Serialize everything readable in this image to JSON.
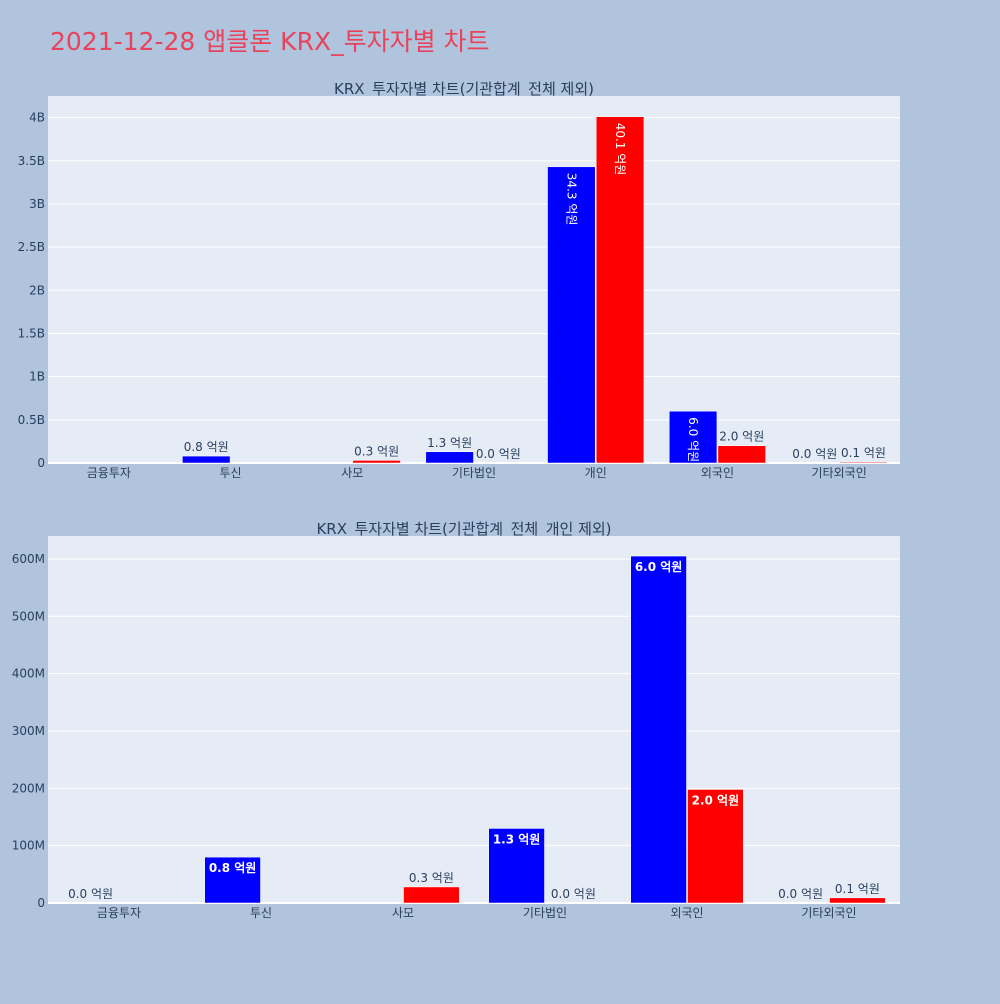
{
  "page_title": "2021-12-28 앱클론 KRX_투자자별 차트",
  "colors": {
    "buy": "#0000ff",
    "sell": "#ff0000",
    "plot_bg": "#e5ecf6",
    "paper_bg": "#b0c4de",
    "title": "#e8435a"
  },
  "chart_data": [
    {
      "type": "bar",
      "title": "KRX_투자자별 차트(기관합계_전체 제외)",
      "categories": [
        "금융투자",
        "투신",
        "사모",
        "기타법인",
        "개인",
        "외국인",
        "기타외국인"
      ],
      "ylim": [
        0,
        4250000000
      ],
      "yticks": [
        0,
        500000000,
        1000000000,
        1500000000,
        2000000000,
        2500000000,
        3000000000,
        3500000000,
        4000000000
      ],
      "ytick_labels": [
        "0",
        "0.5B",
        "1B",
        "1.5B",
        "2B",
        "2.5B",
        "3B",
        "3.5B",
        "4B"
      ],
      "grid": true,
      "series": [
        {
          "values": [
            0,
            80000000,
            0,
            130000000,
            3430000000,
            600000000,
            0
          ],
          "labels": [
            "",
            "0.8 억원",
            "",
            "1.3 억원",
            "34.3 억원",
            "6.0 억원",
            "0.0 억원"
          ],
          "label_pos": [
            "",
            "outside",
            "",
            "outside",
            "inside",
            "inside",
            "outside"
          ]
        },
        {
          "values": [
            0,
            0,
            30000000,
            0,
            4010000000,
            200000000,
            10000000
          ],
          "labels": [
            "",
            "",
            "0.3 억원",
            "0.0 억원",
            "40.1 억원",
            "2.0 억원",
            "0.1 억원"
          ],
          "label_pos": [
            "",
            "",
            "outside",
            "outside",
            "inside",
            "outside",
            "outside"
          ]
        }
      ]
    },
    {
      "type": "bar",
      "title": "KRX_투자자별 차트(기관합계_전체_개인 제외)",
      "categories": [
        "금융투자",
        "투신",
        "사모",
        "기타법인",
        "외국인",
        "기타외국인"
      ],
      "ylim": [
        0,
        640000000
      ],
      "yticks": [
        0,
        100000000,
        200000000,
        300000000,
        400000000,
        500000000,
        600000000
      ],
      "ytick_labels": [
        "0",
        "100M",
        "200M",
        "300M",
        "400M",
        "500M",
        "600M"
      ],
      "grid": true,
      "series": [
        {
          "values": [
            0,
            80000000,
            0,
            130000000,
            605000000,
            0
          ],
          "labels": [
            "0.0 억원",
            "0.8 억원",
            "",
            "1.3 억원",
            "6.0 억원",
            "0.0 억원"
          ],
          "label_pos": [
            "outside",
            "inside",
            "",
            "inside",
            "inside",
            "outside"
          ]
        },
        {
          "values": [
            0,
            0,
            28000000,
            0,
            198000000,
            9000000
          ],
          "labels": [
            "",
            "",
            "0.3 억원",
            "0.0 억원",
            "2.0 억원",
            "0.1 억원"
          ],
          "label_pos": [
            "",
            "",
            "outside",
            "outside",
            "inside",
            "outside"
          ]
        }
      ]
    }
  ]
}
